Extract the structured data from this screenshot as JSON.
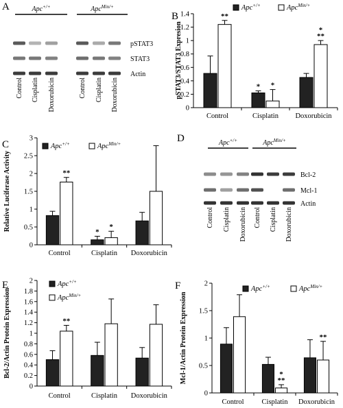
{
  "panels": {
    "A": {
      "label": "A",
      "groups": [
        "Apc",
        "Apc"
      ],
      "group_sup": [
        "+/+",
        "Min/+"
      ],
      "rows": [
        "pSTAT3",
        "STAT3",
        "Actin"
      ],
      "lanes": [
        "Control",
        "Cisplatin",
        "Doxorubicin",
        "Control",
        "Cisplatin",
        "Doxorubicin"
      ]
    },
    "D": {
      "label": "D",
      "groups": [
        "Apc",
        "Apc"
      ],
      "group_sup": [
        "+/+",
        "Min/+"
      ],
      "rows": [
        "Bcl-2",
        "Mcl-1",
        "Actin"
      ],
      "lanes": [
        "Control",
        "Cisplatin",
        "Doxorubicin",
        "Control",
        "Cisplatin",
        "Doxorubicin"
      ]
    }
  },
  "legend": {
    "wt_base": "Apc",
    "wt_sup": "+/+",
    "min_base": "Apc",
    "min_sup": "Min/+",
    "wt_color": "#222222",
    "min_color": "#ffffff"
  },
  "chart_data": [
    {
      "panel": "B",
      "type": "bar",
      "categories": [
        "Control",
        "Cisplatin",
        "Doxorubicin"
      ],
      "ylabel": "pSTAT3/STAT3 Expresion",
      "ylim": [
        0,
        1.4
      ],
      "yticks": [
        "0",
        "0.2",
        "0.4",
        "0.6",
        "0.8",
        "1",
        "1.2",
        "1.4"
      ],
      "series": [
        {
          "values": [
            0.51,
            0.22,
            0.45
          ],
          "errors": [
            0.26,
            0.03,
            0.06
          ],
          "annotations": [
            "",
            "*",
            ""
          ]
        },
        {
          "values": [
            1.24,
            0.1,
            0.94
          ],
          "errors": [
            0.06,
            0.17,
            0.06
          ],
          "annotations": [
            "**",
            "*",
            "*\n**"
          ]
        }
      ]
    },
    {
      "panel": "C",
      "type": "bar",
      "categories": [
        "Control",
        "Cisplatin",
        "Doxorubicin"
      ],
      "ylabel": "Relative Luciferase Activity",
      "ylim": [
        0,
        3
      ],
      "yticks": [
        "0",
        "0.5",
        "1",
        "1.5",
        "2",
        "2.5",
        "3"
      ],
      "series": [
        {
          "values": [
            0.82,
            0.14,
            0.67
          ],
          "errors": [
            0.12,
            0.1,
            0.24
          ],
          "annotations": [
            "",
            "*",
            ""
          ]
        },
        {
          "values": [
            1.76,
            0.2,
            1.5
          ],
          "errors": [
            0.13,
            0.18,
            1.28
          ],
          "annotations": [
            "**",
            "*",
            ""
          ]
        }
      ]
    },
    {
      "panel": "E",
      "type": "bar",
      "categories": [
        "Control",
        "Cisplatin",
        "Doxorubicin"
      ],
      "ylabel": "Bcl-2/Actin Protein Expression",
      "ylim": [
        0,
        2
      ],
      "yticks": [
        "0",
        "0.2",
        "0.4",
        "0.6",
        "0.8",
        "1",
        "1.2",
        "1.4",
        "1.6",
        "1.8",
        "2"
      ],
      "series": [
        {
          "values": [
            0.5,
            0.58,
            0.53
          ],
          "errors": [
            0.17,
            0.25,
            0.2
          ],
          "annotations": [
            "",
            "",
            ""
          ]
        },
        {
          "values": [
            1.04,
            1.18,
            1.17
          ],
          "errors": [
            0.11,
            0.47,
            0.37
          ],
          "annotations": [
            "**",
            "",
            ""
          ]
        }
      ]
    },
    {
      "panel": "F",
      "type": "bar",
      "categories": [
        "Control",
        "Cisplatin",
        "Doxorubicin"
      ],
      "ylabel": "Mcl-1/Actin Protein Expression",
      "ylim": [
        0,
        2
      ],
      "yticks": [
        "0",
        "0.5",
        "1",
        "1.5",
        "2"
      ],
      "series": [
        {
          "values": [
            0.89,
            0.52,
            0.64
          ],
          "errors": [
            0.3,
            0.13,
            0.33
          ],
          "annotations": [
            "",
            "",
            ""
          ]
        },
        {
          "values": [
            1.39,
            0.09,
            0.6
          ],
          "errors": [
            0.4,
            0.06,
            0.34
          ],
          "annotations": [
            "",
            "*\n**",
            "**"
          ]
        }
      ]
    }
  ]
}
